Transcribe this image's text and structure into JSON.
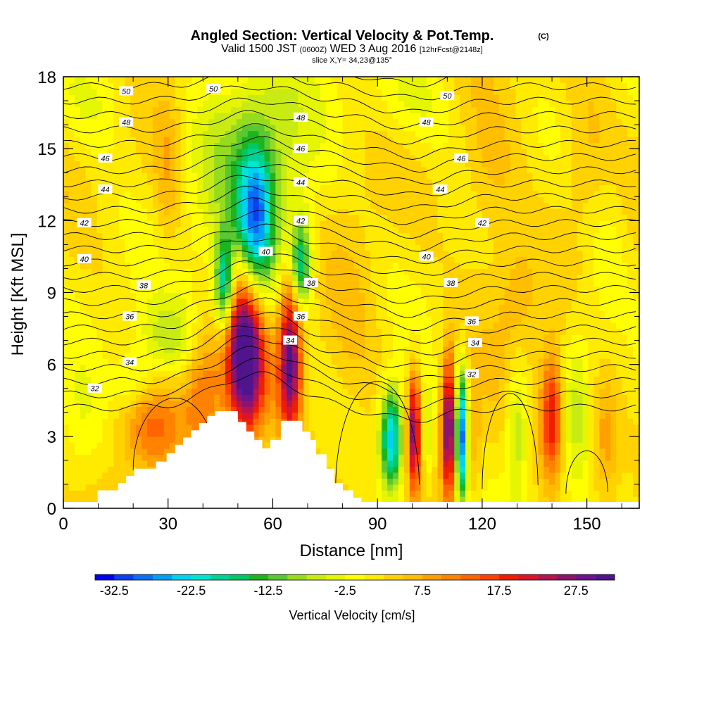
{
  "chart_data": {
    "type": "heatmap",
    "title": "Angled Section: Vertical Velocity & Pot.Temp.",
    "title_tag": "(C)",
    "subtitle_main": "Valid 1500 JST",
    "subtitle_utc": "(0600Z)",
    "subtitle_date": "WED 3 Aug 2016",
    "subtitle_fcst": "[12hrFcst@2148z]",
    "subtitle2": "slice X,Y= 34,23@135°",
    "xlabel": "Distance [nm]",
    "ylabel": "Height [Kft MSL]",
    "xlim": [
      0,
      165
    ],
    "ylim": [
      0,
      18
    ],
    "xticks": [
      "0",
      "30",
      "60",
      "90",
      "120",
      "150"
    ],
    "yticks": [
      "0",
      "3",
      "6",
      "9",
      "12",
      "15",
      "18"
    ],
    "colorbar": {
      "label": "Vertical Velocity [cm/s]",
      "tick_labels": [
        "-32.5",
        "-22.5",
        "-12.5",
        "-2.5",
        "7.5",
        "17.5",
        "27.5"
      ],
      "colors": [
        "#0000ee",
        "#0a3ef0",
        "#0a6ef5",
        "#00a0f5",
        "#00d2f0",
        "#00e6d2",
        "#00d296",
        "#00c864",
        "#1eb41e",
        "#5ac832",
        "#96dc1e",
        "#c8eb14",
        "#e6f500",
        "#ffff00",
        "#ffeb00",
        "#ffd200",
        "#ffbe00",
        "#ffa000",
        "#ff8200",
        "#ff6400",
        "#ff4100",
        "#f01e00",
        "#dc1428",
        "#b41450",
        "#8c146e",
        "#6e148c",
        "#50148c"
      ]
    },
    "theta_labels": [
      {
        "d": 18,
        "h": 17.4,
        "text": "50"
      },
      {
        "d": 43,
        "h": 17.5,
        "text": "50"
      },
      {
        "d": 110,
        "h": 17.2,
        "text": "50"
      },
      {
        "d": 18,
        "h": 16.1,
        "text": "48"
      },
      {
        "d": 68,
        "h": 16.3,
        "text": "48"
      },
      {
        "d": 104,
        "h": 16.1,
        "text": "48"
      },
      {
        "d": 12,
        "h": 14.6,
        "text": "46"
      },
      {
        "d": 68,
        "h": 15.0,
        "text": "46"
      },
      {
        "d": 114,
        "h": 14.6,
        "text": "46"
      },
      {
        "d": 12,
        "h": 13.3,
        "text": "44"
      },
      {
        "d": 68,
        "h": 13.6,
        "text": "44"
      },
      {
        "d": 108,
        "h": 13.3,
        "text": "44"
      },
      {
        "d": 6,
        "h": 11.9,
        "text": "42"
      },
      {
        "d": 68,
        "h": 12.0,
        "text": "42"
      },
      {
        "d": 120,
        "h": 11.9,
        "text": "42"
      },
      {
        "d": 6,
        "h": 10.4,
        "text": "40"
      },
      {
        "d": 58,
        "h": 10.7,
        "text": "40"
      },
      {
        "d": 104,
        "h": 10.5,
        "text": "40"
      },
      {
        "d": 23,
        "h": 9.3,
        "text": "38"
      },
      {
        "d": 71,
        "h": 9.4,
        "text": "38"
      },
      {
        "d": 111,
        "h": 9.4,
        "text": "38"
      },
      {
        "d": 19,
        "h": 8.0,
        "text": "36"
      },
      {
        "d": 68,
        "h": 8.0,
        "text": "36"
      },
      {
        "d": 117,
        "h": 7.8,
        "text": "36"
      },
      {
        "d": 19,
        "h": 6.1,
        "text": "34"
      },
      {
        "d": 65,
        "h": 7.0,
        "text": "34"
      },
      {
        "d": 118,
        "h": 6.9,
        "text": "34"
      },
      {
        "d": 9,
        "h": 5.0,
        "text": "32"
      },
      {
        "d": 117,
        "h": 5.6,
        "text": "32"
      }
    ],
    "terrain": [
      [
        0,
        0.25
      ],
      [
        9.8,
        0.25
      ],
      [
        9.8,
        0.75
      ],
      [
        15.7,
        0.75
      ],
      [
        15.7,
        1.05
      ],
      [
        18,
        1.05
      ],
      [
        18,
        1.35
      ],
      [
        20.3,
        1.35
      ],
      [
        20.3,
        1.65
      ],
      [
        26.5,
        1.65
      ],
      [
        26.5,
        1.95
      ],
      [
        29.6,
        1.95
      ],
      [
        29.6,
        2.3
      ],
      [
        32,
        2.3
      ],
      [
        32,
        2.65
      ],
      [
        34.3,
        2.65
      ],
      [
        34.3,
        2.95
      ],
      [
        36.6,
        2.95
      ],
      [
        36.6,
        3.25
      ],
      [
        38.9,
        3.25
      ],
      [
        38.9,
        3.55
      ],
      [
        41.2,
        3.55
      ],
      [
        41.2,
        3.85
      ],
      [
        43.5,
        3.85
      ],
      [
        43.5,
        4.05
      ],
      [
        50,
        4.05
      ],
      [
        50,
        3.6
      ],
      [
        52.4,
        3.6
      ],
      [
        52.4,
        3.2
      ],
      [
        54.7,
        3.2
      ],
      [
        54.7,
        2.85
      ],
      [
        57,
        2.85
      ],
      [
        57,
        2.5
      ],
      [
        59.3,
        2.5
      ],
      [
        59.3,
        2.85
      ],
      [
        62.3,
        2.85
      ],
      [
        62.3,
        3.65
      ],
      [
        68.5,
        3.65
      ],
      [
        68.5,
        3.2
      ],
      [
        70.8,
        3.2
      ],
      [
        70.8,
        2.85
      ],
      [
        72.4,
        2.85
      ],
      [
        72.4,
        2.25
      ],
      [
        75.4,
        2.25
      ],
      [
        75.4,
        1.65
      ],
      [
        77.7,
        1.65
      ],
      [
        77.7,
        1.05
      ],
      [
        80.1,
        1.05
      ],
      [
        80.1,
        0.75
      ],
      [
        83.1,
        0.75
      ],
      [
        83.1,
        0.45
      ],
      [
        85.4,
        0.45
      ],
      [
        85.4,
        0.25
      ],
      [
        165,
        0.25
      ]
    ],
    "vv_fields": [
      {
        "d": 52,
        "h": 6.5,
        "sd": 3.5,
        "sh": 2.3,
        "v": 34
      },
      {
        "d": 65,
        "h": 6.4,
        "sd": 2.2,
        "sh": 2.3,
        "v": 28
      },
      {
        "d": 58,
        "h": 5.4,
        "sd": 10,
        "sh": 2.0,
        "v": 5
      },
      {
        "d": 94,
        "h": 2.9,
        "sd": 2.3,
        "sh": 1.5,
        "v": -28
      },
      {
        "d": 100.5,
        "h": 3.2,
        "sd": 1.2,
        "sh": 1.7,
        "v": 24
      },
      {
        "d": 104.5,
        "h": 3.0,
        "sd": 1.4,
        "sh": 1.6,
        "v": -8
      },
      {
        "d": 110.5,
        "h": 3.4,
        "sd": 1.4,
        "sh": 2.0,
        "v": 30
      },
      {
        "d": 114,
        "h": 3.0,
        "sd": 1.3,
        "sh": 1.9,
        "v": -32
      },
      {
        "d": 117.5,
        "h": 3.0,
        "sd": 1.4,
        "sh": 1.6,
        "v": 6
      },
      {
        "d": 130,
        "h": 3.5,
        "sd": 2.3,
        "sh": 2.2,
        "v": -10
      },
      {
        "d": 140,
        "h": 3.8,
        "sd": 2.3,
        "sh": 1.8,
        "v": 20
      },
      {
        "d": 147,
        "h": 4.8,
        "sd": 3.5,
        "sh": 2.8,
        "v": -6
      },
      {
        "d": 55,
        "h": 12.0,
        "sd": 3.5,
        "sh": 2.2,
        "v": -22
      },
      {
        "d": 46,
        "h": 9.3,
        "sd": 1.8,
        "sh": 1.4,
        "v": -22
      },
      {
        "d": 68,
        "h": 10.2,
        "sd": 2.0,
        "sh": 1.3,
        "v": -20
      },
      {
        "d": 55,
        "h": 13.5,
        "sd": 12,
        "sh": 3.6,
        "v": -11
      },
      {
        "d": 30,
        "h": 7.0,
        "sd": 7,
        "sh": 1.3,
        "v": -9
      },
      {
        "d": 20,
        "h": 5.2,
        "sd": 4,
        "sh": 0.8,
        "v": -7
      },
      {
        "d": 25,
        "h": 3.3,
        "sd": 6,
        "sh": 1.5,
        "v": 9
      },
      {
        "d": 40,
        "h": 5.0,
        "sd": 4,
        "sh": 2.0,
        "v": 10
      },
      {
        "d": 155,
        "h": 2.8,
        "sd": 3,
        "sh": 1.8,
        "v": 9
      },
      {
        "d": 30,
        "h": 14.0,
        "sd": 3,
        "sh": 2.5,
        "v": 6
      },
      {
        "d": 82,
        "h": 8.0,
        "sd": 6,
        "sh": 3.0,
        "v": 4
      },
      {
        "d": 122,
        "h": 13.0,
        "sd": 6,
        "sh": 3.0,
        "v": 4
      },
      {
        "d": 150,
        "h": 14.5,
        "sd": 5,
        "sh": 2.5,
        "v": 5
      },
      {
        "d": 130,
        "h": 8.5,
        "sd": 4,
        "sh": 2.0,
        "v": 5
      },
      {
        "d": 10,
        "h": 17.0,
        "sd": 8,
        "sh": 1.5,
        "v": -5
      },
      {
        "d": 100,
        "h": 17.0,
        "sd": 10,
        "sh": 1.5,
        "v": -5
      },
      {
        "d": 155,
        "h": 10.0,
        "sd": 5,
        "sh": 3.0,
        "v": -4
      },
      {
        "d": 5,
        "h": 3.0,
        "sd": 5,
        "sh": 2.0,
        "v": -5
      }
    ]
  }
}
